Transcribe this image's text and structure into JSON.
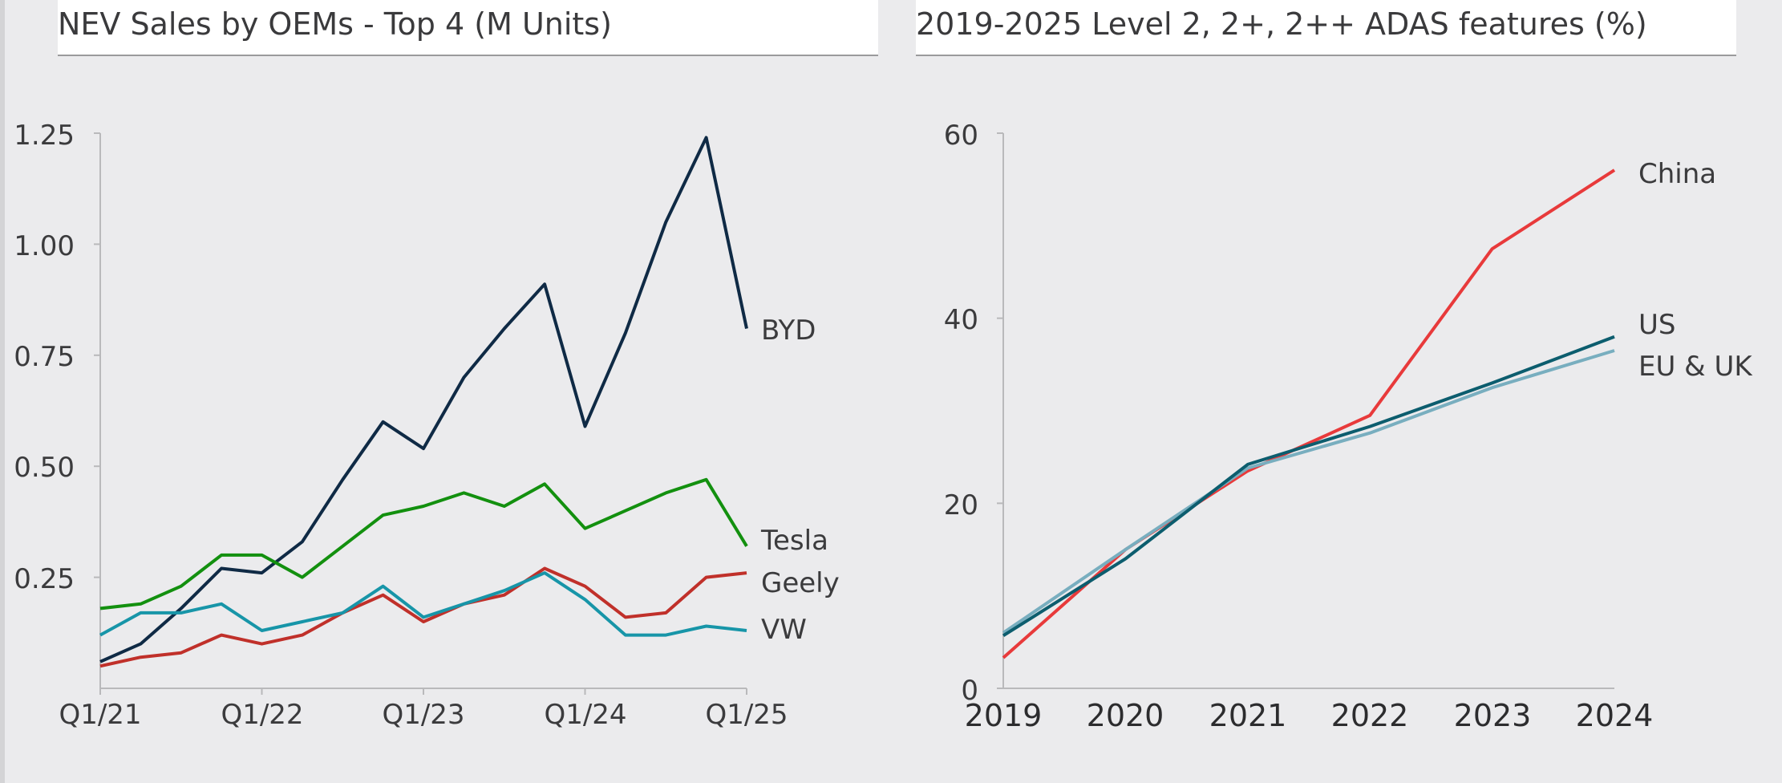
{
  "chart_data": [
    {
      "type": "line",
      "title": "NEV Sales by OEMs - Top 4 (M Units)",
      "xlabel": "",
      "ylabel": "",
      "ylim": [
        0,
        1.25
      ],
      "y_ticks": [
        "0.25",
        "0.50",
        "0.75",
        "1.00",
        "1.25"
      ],
      "x_tick_labels": [
        "Q1/21",
        "Q1/22",
        "Q1/23",
        "Q1/24",
        "Q1/25"
      ],
      "categories": [
        "Q1/21",
        "Q2/21",
        "Q3/21",
        "Q4/21",
        "Q1/22",
        "Q2/22",
        "Q3/22",
        "Q4/22",
        "Q1/23",
        "Q2/23",
        "Q3/23",
        "Q4/23",
        "Q1/24",
        "Q2/24",
        "Q3/24",
        "Q4/24",
        "Q1/25"
      ],
      "series": [
        {
          "name": "BYD",
          "color": "#0f2a45",
          "values": [
            0.06,
            0.1,
            0.18,
            0.27,
            0.26,
            0.33,
            0.47,
            0.6,
            0.54,
            0.7,
            0.81,
            0.91,
            0.59,
            0.8,
            1.05,
            1.24,
            0.81
          ]
        },
        {
          "name": "Tesla",
          "color": "#13900f",
          "values": [
            0.18,
            0.19,
            0.23,
            0.3,
            0.3,
            0.25,
            0.32,
            0.39,
            0.41,
            0.44,
            0.41,
            0.46,
            0.36,
            0.4,
            0.44,
            0.47,
            0.32
          ]
        },
        {
          "name": "Geely",
          "color": "#c0302a",
          "values": [
            0.05,
            0.07,
            0.08,
            0.12,
            0.1,
            0.12,
            0.17,
            0.21,
            0.15,
            0.19,
            0.21,
            0.27,
            0.23,
            0.16,
            0.17,
            0.25,
            0.26
          ]
        },
        {
          "name": "VW",
          "color": "#1795a8",
          "values": [
            0.12,
            0.17,
            0.17,
            0.19,
            0.13,
            0.15,
            0.17,
            0.23,
            0.16,
            0.19,
            0.22,
            0.26,
            0.2,
            0.12,
            0.12,
            0.14,
            0.13
          ]
        }
      ]
    },
    {
      "type": "line",
      "title": "2019-2025 Level 2, 2+, 2++ ADAS features (%)",
      "xlabel": "",
      "ylabel": "",
      "ylim": [
        0,
        60
      ],
      "y_ticks": [
        "0",
        "20",
        "40",
        "60"
      ],
      "categories": [
        "2019",
        "2020",
        "2021",
        "2022",
        "2023",
        "2024"
      ],
      "series": [
        {
          "name": "China",
          "color": "#e83a3b",
          "values": [
            3.3,
            15.0,
            23.5,
            29.5,
            47.5,
            56.0
          ]
        },
        {
          "name": "US",
          "color": "#0c5d6e",
          "values": [
            5.7,
            14.0,
            24.2,
            28.3,
            33.0,
            38.0
          ]
        },
        {
          "name": "EU & UK",
          "color": "#78aebf",
          "values": [
            6.0,
            15.0,
            23.8,
            27.6,
            32.5,
            36.5
          ]
        }
      ]
    }
  ]
}
